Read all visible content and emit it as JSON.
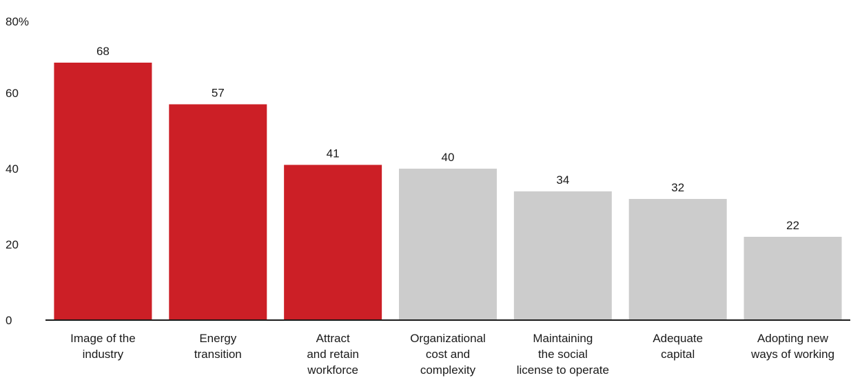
{
  "chart_data": {
    "type": "bar",
    "unit_label": "80%",
    "categories": [
      [
        "Image of the",
        "industry"
      ],
      [
        "Energy",
        "transition"
      ],
      [
        "Attract",
        "and retain",
        "workforce"
      ],
      [
        "Organizational",
        "cost and",
        "complexity"
      ],
      [
        "Maintaining",
        "the social",
        "license to operate"
      ],
      [
        "Adequate",
        "capital"
      ],
      [
        "Adopting new",
        "ways of working"
      ]
    ],
    "values": [
      68,
      57,
      41,
      40,
      34,
      32,
      22
    ],
    "highlighted": [
      true,
      true,
      true,
      false,
      false,
      false,
      false
    ],
    "yticks": [
      "0",
      "20",
      "40",
      "60"
    ],
    "ylim": [
      0,
      80
    ],
    "grid": false,
    "colors": {
      "highlight": "#cc1f26",
      "muted": "#cccccc",
      "axis": "#1a1a1a"
    }
  }
}
